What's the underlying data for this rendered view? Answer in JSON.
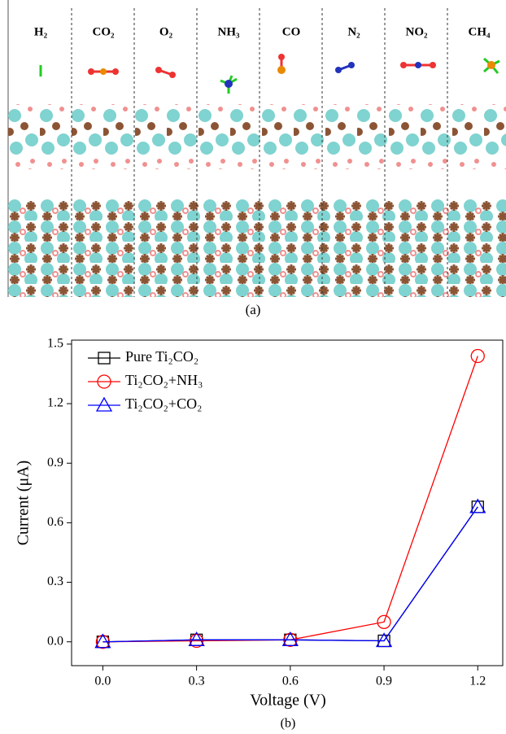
{
  "figure_a": {
    "labels": [
      "H₂",
      "CO₂",
      "O₂",
      "NH₃",
      "CO",
      "N₂",
      "NO₂",
      "CH₄"
    ],
    "caption": "(a)"
  },
  "chart_data": {
    "type": "line",
    "caption": "(b)",
    "x_label": "Voltage (V)",
    "y_label": "Current (μA)",
    "x": [
      0,
      0.3,
      0.6,
      0.9,
      1.2
    ],
    "xlim": [
      -0.1,
      1.28
    ],
    "xticks": [
      {
        "value": 0,
        "label": "0.0"
      },
      0.3,
      0.6,
      0.9,
      1.2
    ],
    "ylim": [
      -0.12,
      1.52
    ],
    "yticks": [
      {
        "value": 0,
        "label": "0.0"
      },
      0.3,
      0.6,
      0.9,
      1.2,
      1.5
    ],
    "legend": "upper-left",
    "series": [
      {
        "name": "Pure Ti₂CO₂",
        "color": "#000000",
        "marker": "square",
        "values": [
          0,
          0.01,
          0.01,
          0.005,
          0.68
        ]
      },
      {
        "name": "Ti₂CO₂+NH₃",
        "color": "#ff0000",
        "marker": "circle",
        "values": [
          0,
          0.005,
          0.01,
          0.1,
          1.44
        ]
      },
      {
        "name": "Ti₂CO₂+CO₂",
        "color": "#0000ff",
        "marker": "triangle",
        "values": [
          0,
          0.01,
          0.01,
          0.005,
          0.68
        ]
      }
    ]
  }
}
